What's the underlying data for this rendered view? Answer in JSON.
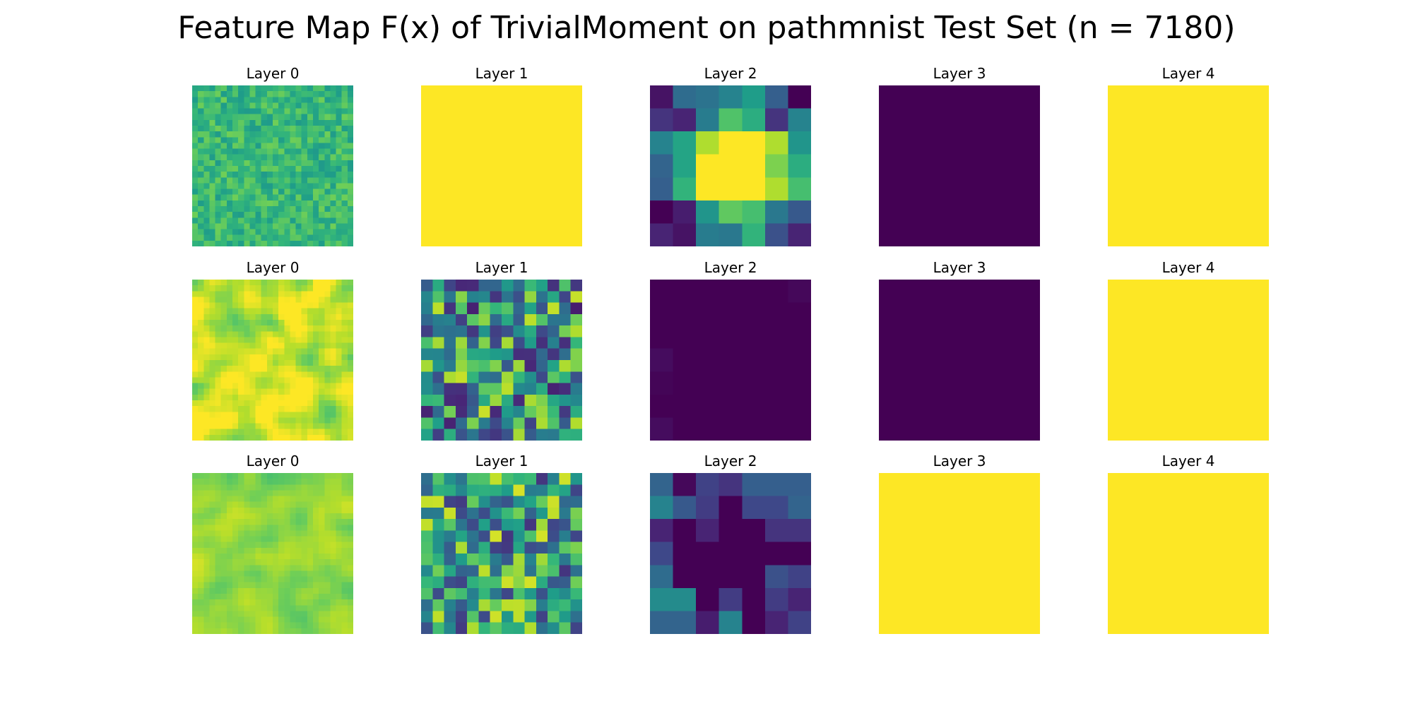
{
  "figure": {
    "title": "Feature Map F(x) of TrivialMoment on pathmnist Test Set (n = 7180)"
  },
  "colormap": {
    "name": "viridis",
    "stops": [
      "#440154",
      "#482878",
      "#3e4989",
      "#31688e",
      "#26828e",
      "#1f9e89",
      "#35b779",
      "#6ece58",
      "#b5de2b",
      "#fde725"
    ]
  },
  "chart_data": {
    "type": "heatmap",
    "title": "Feature Map F(x) of TrivialMoment on pathmnist Test Set (n = 7180)",
    "grid": false,
    "color_range": [
      0,
      1
    ],
    "rows": [
      {
        "panels": [
          {
            "title": "Layer 0",
            "size": 28,
            "pattern": "noise-high",
            "base": 0.66,
            "amp": 0.12,
            "seed": 11
          },
          {
            "title": "Layer 1",
            "size": 1,
            "pattern": "constant",
            "value": 1.0
          },
          {
            "title": "Layer 2",
            "size": 7,
            "pattern": "matrix",
            "values": [
              [
                0.05,
                0.35,
                0.38,
                0.45,
                0.55,
                0.3,
                0.0
              ],
              [
                0.15,
                0.1,
                0.42,
                0.72,
                0.62,
                0.15,
                0.45
              ],
              [
                0.45,
                0.58,
                0.88,
                1.0,
                1.0,
                0.88,
                0.52
              ],
              [
                0.32,
                0.58,
                1.0,
                1.0,
                1.0,
                0.8,
                0.62
              ],
              [
                0.3,
                0.65,
                1.0,
                1.0,
                1.0,
                0.88,
                0.7
              ],
              [
                0.0,
                0.08,
                0.52,
                0.75,
                0.7,
                0.4,
                0.28
              ],
              [
                0.1,
                0.05,
                0.42,
                0.4,
                0.65,
                0.25,
                0.1
              ]
            ]
          },
          {
            "title": "Layer 3",
            "size": 1,
            "pattern": "constant",
            "value": 0.0
          },
          {
            "title": "Layer 4",
            "size": 1,
            "pattern": "constant",
            "value": 1.0
          }
        ]
      },
      {
        "panels": [
          {
            "title": "Layer 0",
            "size": 28,
            "pattern": "noise-clipped",
            "base": 0.93,
            "amp": 0.18,
            "seed": 23
          },
          {
            "title": "Layer 1",
            "size": 14,
            "pattern": "noise-mid",
            "base": 0.5,
            "amp": 0.42,
            "seed": 37
          },
          {
            "title": "Layer 2",
            "size": 7,
            "pattern": "matrix",
            "values": [
              [
                0.0,
                0.0,
                0.0,
                0.0,
                0.0,
                0.0,
                0.02
              ],
              [
                0.0,
                0.0,
                0.0,
                0.0,
                0.0,
                0.0,
                0.0
              ],
              [
                0.0,
                0.0,
                0.0,
                0.0,
                0.0,
                0.0,
                0.0
              ],
              [
                0.03,
                0.0,
                0.0,
                0.0,
                0.0,
                0.0,
                0.0
              ],
              [
                0.01,
                0.0,
                0.0,
                0.0,
                0.0,
                0.0,
                0.0
              ],
              [
                0.0,
                0.0,
                0.0,
                0.0,
                0.0,
                0.0,
                0.0
              ],
              [
                0.03,
                0.0,
                0.0,
                0.0,
                0.0,
                0.0,
                0.0
              ]
            ]
          },
          {
            "title": "Layer 3",
            "size": 1,
            "pattern": "constant",
            "value": 0.0
          },
          {
            "title": "Layer 4",
            "size": 1,
            "pattern": "constant",
            "value": 1.0
          }
        ]
      },
      {
        "panels": [
          {
            "title": "Layer 0",
            "size": 28,
            "pattern": "noise-smooth",
            "base": 0.84,
            "amp": 0.09,
            "seed": 53
          },
          {
            "title": "Layer 1",
            "size": 14,
            "pattern": "noise-mid",
            "base": 0.55,
            "amp": 0.4,
            "seed": 71
          },
          {
            "title": "Layer 2",
            "size": 7,
            "pattern": "matrix",
            "values": [
              [
                0.32,
                0.02,
                0.2,
                0.15,
                0.3,
                0.3,
                0.3
              ],
              [
                0.45,
                0.28,
                0.18,
                0.0,
                0.22,
                0.22,
                0.32
              ],
              [
                0.1,
                0.0,
                0.1,
                0.0,
                0.0,
                0.15,
                0.15
              ],
              [
                0.22,
                0.0,
                0.0,
                0.0,
                0.0,
                0.0,
                0.0
              ],
              [
                0.35,
                0.0,
                0.0,
                0.0,
                0.0,
                0.25,
                0.2
              ],
              [
                0.48,
                0.48,
                0.0,
                0.18,
                0.0,
                0.18,
                0.1
              ],
              [
                0.32,
                0.32,
                0.08,
                0.45,
                0.0,
                0.1,
                0.2
              ]
            ]
          },
          {
            "title": "Layer 3",
            "size": 1,
            "pattern": "constant",
            "value": 1.0
          },
          {
            "title": "Layer 4",
            "size": 1,
            "pattern": "constant",
            "value": 1.0
          }
        ]
      }
    ]
  }
}
